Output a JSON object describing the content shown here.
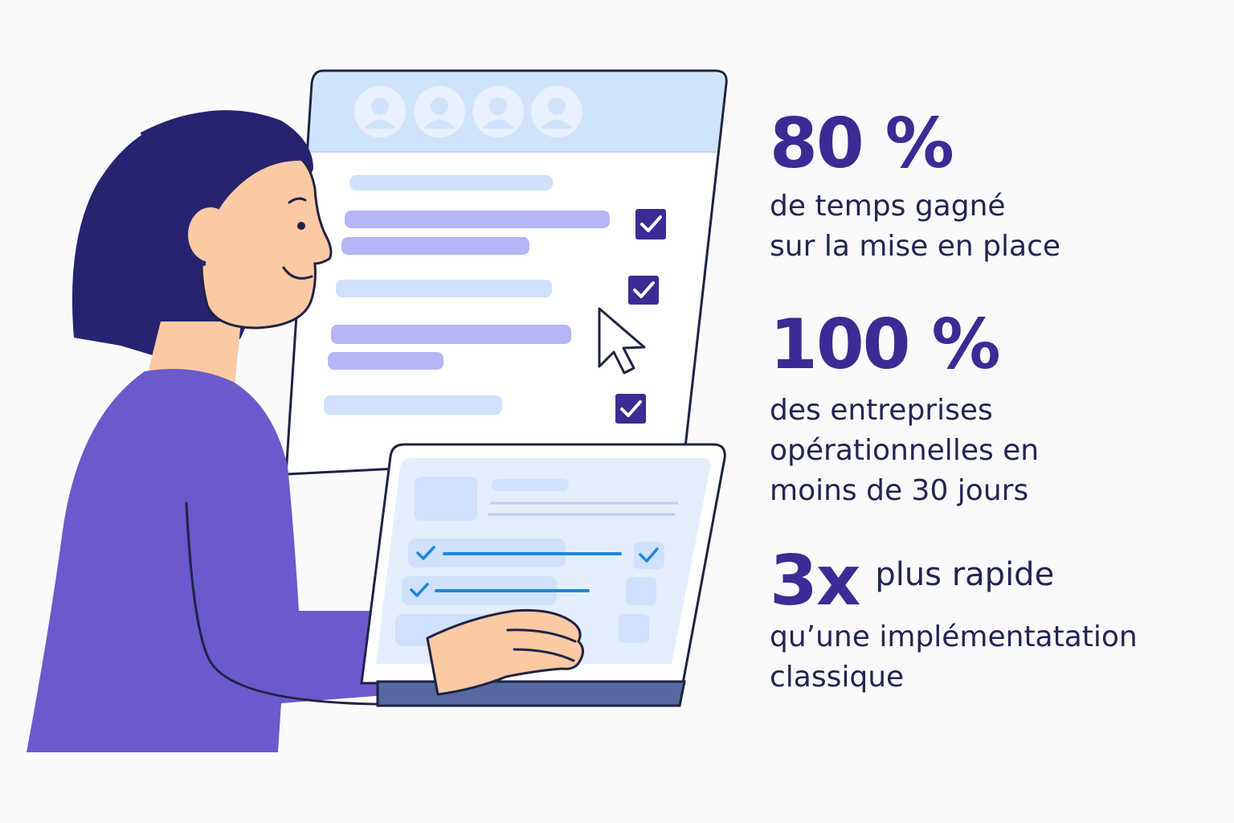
{
  "stats": [
    {
      "value": "80 %",
      "text": "de temps gagné\nsur la mise en place"
    },
    {
      "value": "100 %",
      "text": "des entreprises\nopérationnelles en\nmoins de 30 jours"
    },
    {
      "value": "3x",
      "inline_text": "plus rapide",
      "text": "qu’une implémentatation\nclassique"
    }
  ],
  "illustration": {
    "subject": "woman-using-laptop",
    "icons": [
      "avatar-icon",
      "avatar-icon",
      "avatar-icon",
      "avatar-icon",
      "checkbox-checked-icon",
      "checkbox-checked-icon",
      "checkbox-checked-icon",
      "mouse-cursor-icon"
    ],
    "colors": {
      "accent": "#3a2c94",
      "sweater": "#6a5acd",
      "hair": "#272370",
      "skin": "#fbc9a4",
      "window_header": "#cfe3fb",
      "bar_blue": "#cfe1fb",
      "bar_purple": "#b3b7f6",
      "check_box": "#3a2c94"
    }
  }
}
